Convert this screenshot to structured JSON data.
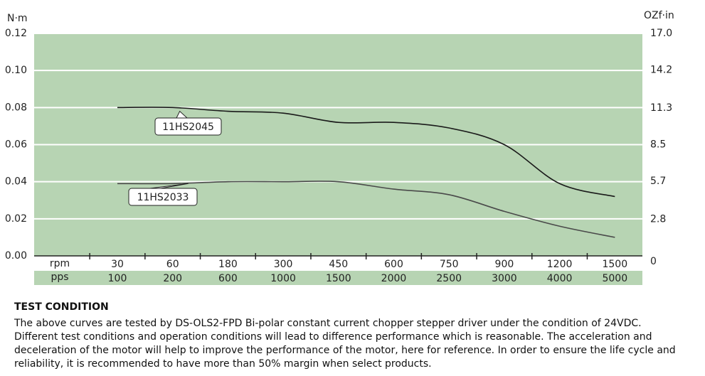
{
  "chart_data": {
    "type": "line",
    "y_label": "N·m",
    "y2_label": "OZf·in",
    "x_rows": [
      "rpm",
      "pps"
    ],
    "categories": [
      "30",
      "60",
      "180",
      "300",
      "450",
      "600",
      "750",
      "900",
      "1200",
      "1500"
    ],
    "categories2": [
      "100",
      "200",
      "600",
      "1000",
      "1500",
      "2000",
      "2500",
      "3000",
      "4000",
      "5000"
    ],
    "ylim": [
      0,
      0.12
    ],
    "yticks": [
      {
        "value": 0,
        "label": "0.00"
      },
      0.02,
      0.04,
      0.06,
      0.08,
      {
        "value": 0.1,
        "label": "0.10"
      },
      0.12
    ],
    "y2lim": [
      0,
      17
    ],
    "y2ticks": [
      0,
      2.8,
      5.7,
      8.5,
      11.3,
      14.2,
      {
        "value": 17,
        "label": "17.0"
      }
    ],
    "grid": true,
    "background": "#b7d4b3",
    "series": [
      {
        "name": "11HS2045",
        "color": "#1a1a1a",
        "values": [
          0.08,
          0.08,
          0.078,
          0.077,
          0.072,
          0.072,
          0.069,
          0.06,
          0.039,
          0.032
        ]
      },
      {
        "name": "11HS2033",
        "color": "#4a4a4a",
        "values": [
          0.039,
          0.039,
          0.04,
          0.04,
          0.04,
          0.036,
          0.033,
          0.024,
          0.016,
          0.01
        ]
      }
    ]
  },
  "notes": {
    "title": "TEST CONDITION",
    "text": "The above curves are tested by DS-OLS2-FPD Bi-polar constant current chopper stepper driver under the condition of 24VDC. Different test conditions and operation conditions will lead to difference performance which is reasonable. The acceleration and deceleration of the motor will help to improve the performance of the motor, here for reference. In order to ensure the life cycle and reliability, it is recommended to have more than 50% margin when select products."
  }
}
